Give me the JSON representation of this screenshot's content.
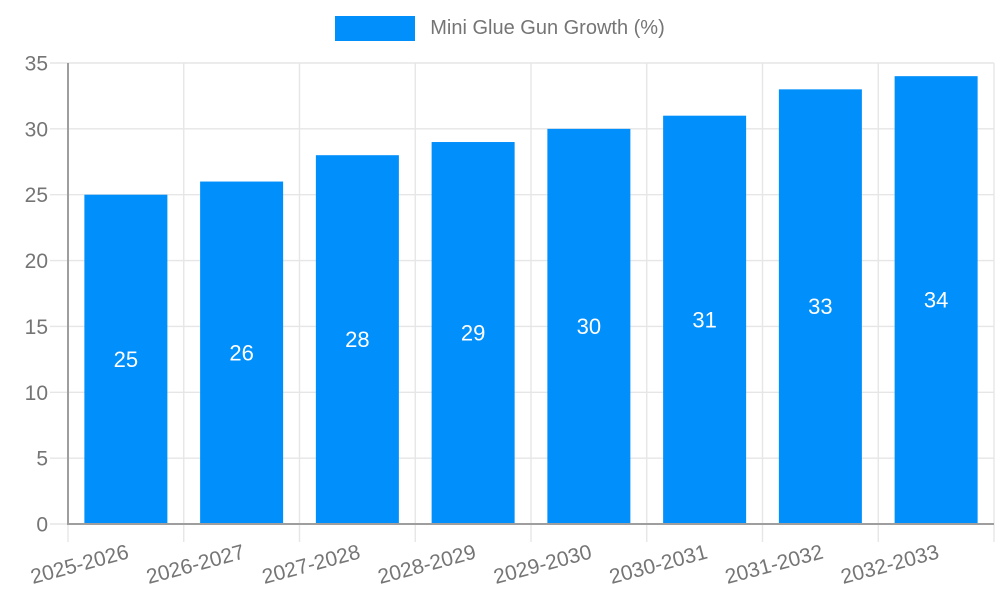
{
  "legend": {
    "label": "Mini Glue Gun Growth (%)"
  },
  "chart_data": {
    "type": "bar",
    "title": "",
    "xlabel": "",
    "ylabel": "",
    "categories": [
      "2025-2026",
      "2026-2027",
      "2027-2028",
      "2028-2029",
      "2029-2030",
      "2030-2031",
      "2031-2032",
      "2032-2033"
    ],
    "series": [
      {
        "name": "Mini Glue Gun Growth (%)",
        "values": [
          25,
          26,
          28,
          29,
          30,
          31,
          33,
          34
        ]
      }
    ],
    "value_labels_shown": true,
    "ylim": [
      0,
      35
    ],
    "yticks": [
      0,
      5,
      10,
      15,
      20,
      25,
      30,
      35
    ],
    "grid": true,
    "legend_position": "top",
    "x_label_rotation_deg": -15,
    "colors": {
      "bar": "#008FFB",
      "value_label": "#ffffff",
      "grid_line": "#e6e6e6",
      "axis_line": "#9e9e9e",
      "tick_label": "#757575",
      "legend_text": "#757575"
    }
  }
}
